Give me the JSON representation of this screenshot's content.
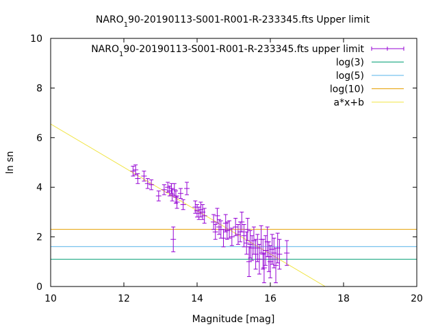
{
  "chart_data": {
    "type": "scatter",
    "title": "NARO_190-20190113-S001-R001-R-233345.fts Upper limit",
    "title_parts": {
      "pre": "NARO",
      "sub": "1",
      "post": "90-20190113-S001-R001-R-233345.fts Upper limit"
    },
    "xlabel": "Magnitude [mag]",
    "ylabel": "ln sn",
    "xlim": [
      10,
      20
    ],
    "ylim": [
      0,
      10
    ],
    "xticks": [
      10,
      12,
      14,
      16,
      18,
      20
    ],
    "yticks": [
      0,
      2,
      4,
      6,
      8,
      10
    ],
    "grid": false,
    "legend_position": "top-right",
    "legend": [
      {
        "label_pre": "NARO",
        "label_sub": "1",
        "label_post": "90-20190113-S001-R001-R-233345.fts upper limit",
        "color": "#9400d3",
        "kind": "errorbar"
      },
      {
        "label": "log(3)",
        "color": "#009e73",
        "kind": "line"
      },
      {
        "label": "log(5)",
        "color": "#56b4e9",
        "kind": "line"
      },
      {
        "label": "log(10)",
        "color": "#e69f00",
        "kind": "line"
      },
      {
        "label": "a*x+b",
        "color": "#f0e442",
        "kind": "line"
      }
    ],
    "hlines": [
      {
        "name": "log(3)",
        "y": 1.0986,
        "color": "#009e73"
      },
      {
        "name": "log(5)",
        "y": 1.6094,
        "color": "#56b4e9"
      },
      {
        "name": "log(10)",
        "y": 2.3026,
        "color": "#e69f00"
      }
    ],
    "fit_line": {
      "name": "a*x+b",
      "x": [
        10,
        17.5
      ],
      "y": [
        6.55,
        0
      ],
      "color": "#f0e442"
    },
    "series": [
      {
        "color": "#9400d3",
        "points": [
          [
            12.25,
            4.65,
            0.2
          ],
          [
            12.32,
            4.7,
            0.2
          ],
          [
            12.38,
            4.35,
            0.2
          ],
          [
            12.55,
            4.45,
            0.2
          ],
          [
            12.65,
            4.15,
            0.2
          ],
          [
            12.75,
            4.1,
            0.2
          ],
          [
            12.95,
            3.65,
            0.2
          ],
          [
            13.1,
            3.9,
            0.2
          ],
          [
            13.2,
            4.0,
            0.2
          ],
          [
            13.25,
            3.85,
            0.2
          ],
          [
            13.3,
            3.95,
            0.2
          ],
          [
            13.32,
            3.7,
            0.25
          ],
          [
            13.35,
            1.9,
            0.5
          ],
          [
            13.38,
            3.9,
            0.25
          ],
          [
            13.42,
            3.6,
            0.25
          ],
          [
            13.45,
            3.4,
            0.25
          ],
          [
            13.55,
            3.75,
            0.2
          ],
          [
            13.62,
            3.3,
            0.2
          ],
          [
            13.72,
            3.95,
            0.25
          ],
          [
            13.95,
            3.2,
            0.25
          ],
          [
            14.0,
            3.05,
            0.25
          ],
          [
            14.05,
            2.95,
            0.25
          ],
          [
            14.1,
            3.1,
            0.3
          ],
          [
            14.15,
            3.0,
            0.3
          ],
          [
            14.2,
            2.85,
            0.3
          ],
          [
            14.45,
            2.6,
            0.3
          ],
          [
            14.5,
            2.2,
            0.3
          ],
          [
            14.55,
            2.85,
            0.3
          ],
          [
            14.6,
            2.4,
            0.3
          ],
          [
            14.65,
            2.3,
            0.35
          ],
          [
            14.72,
            1.95,
            0.35
          ],
          [
            14.78,
            2.55,
            0.35
          ],
          [
            14.82,
            2.25,
            0.35
          ],
          [
            14.88,
            2.3,
            0.35
          ],
          [
            14.95,
            2.0,
            0.35
          ],
          [
            15.05,
            2.4,
            0.35
          ],
          [
            15.12,
            2.1,
            0.4
          ],
          [
            15.18,
            2.2,
            0.4
          ],
          [
            15.22,
            2.6,
            0.4
          ],
          [
            15.28,
            2.05,
            0.45
          ],
          [
            15.35,
            1.75,
            0.45
          ],
          [
            15.38,
            2.3,
            0.45
          ],
          [
            15.42,
            1.0,
            0.6
          ],
          [
            15.45,
            1.7,
            0.55
          ],
          [
            15.5,
            1.55,
            0.5
          ],
          [
            15.55,
            1.85,
            0.55
          ],
          [
            15.6,
            1.3,
            0.6
          ],
          [
            15.65,
            1.55,
            0.55
          ],
          [
            15.7,
            1.1,
            0.6
          ],
          [
            15.75,
            1.9,
            0.55
          ],
          [
            15.8,
            1.3,
            0.6
          ],
          [
            15.83,
            0.75,
            0.6
          ],
          [
            15.87,
            1.45,
            0.6
          ],
          [
            15.92,
            1.8,
            0.6
          ],
          [
            15.96,
            1.2,
            0.6
          ],
          [
            16.0,
            1.0,
            0.65
          ],
          [
            16.05,
            1.5,
            0.6
          ],
          [
            16.1,
            1.35,
            0.6
          ],
          [
            16.15,
            0.85,
            0.7
          ],
          [
            16.2,
            1.55,
            0.6
          ],
          [
            16.25,
            1.3,
            0.6
          ],
          [
            16.45,
            1.35,
            0.5
          ]
        ]
      }
    ]
  }
}
